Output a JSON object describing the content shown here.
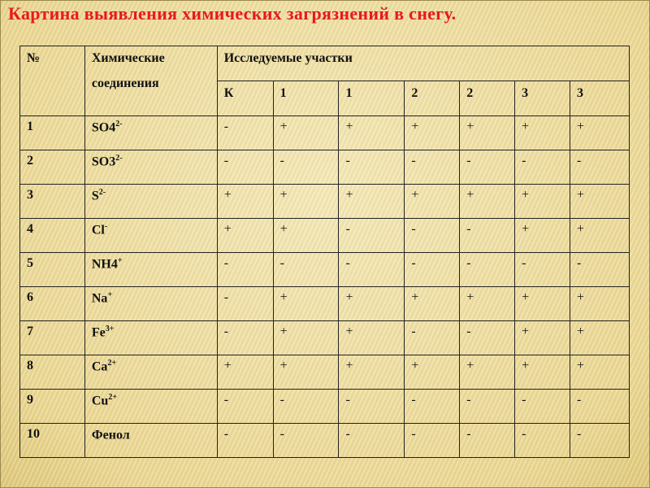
{
  "title": "Картина выявления химических загрязнений в снегу.",
  "table": {
    "col_no": "№",
    "col_compound_1": "Химические",
    "col_compound_2": "соединения",
    "col_sites": "Исследуемые участки",
    "sites": [
      "К",
      "1",
      "1",
      "2",
      "2",
      "3",
      "3"
    ],
    "rows": [
      {
        "no": "1",
        "name": "SO4",
        "charge": "2-",
        "values": [
          "-",
          "+",
          "+",
          "+",
          "+",
          "+",
          "+"
        ]
      },
      {
        "no": "2",
        "name": "SO3",
        "charge": "2-",
        "values": [
          "-",
          "-",
          "-",
          "-",
          "-",
          "-",
          "-"
        ]
      },
      {
        "no": "3",
        "name": "S",
        "charge": "2-",
        "values": [
          "+",
          "+",
          "+",
          "+",
          "+",
          "+",
          "+"
        ]
      },
      {
        "no": "4",
        "name": "Cl",
        "charge": "-",
        "values": [
          "+",
          "+",
          "-",
          "-",
          "-",
          "+",
          "+"
        ]
      },
      {
        "no": "5",
        "name": "NH4",
        "charge": "+",
        "values": [
          "-",
          "-",
          "-",
          "-",
          "-",
          "-",
          "-"
        ]
      },
      {
        "no": "6",
        "name": "Na",
        "charge": "+",
        "values": [
          "-",
          "+",
          "+",
          "+",
          "+",
          "+",
          "+"
        ]
      },
      {
        "no": "7",
        "name": "Fe",
        "charge": "3+",
        "values": [
          "-",
          "+",
          "+",
          "-",
          "-",
          "+",
          "+"
        ]
      },
      {
        "no": "8",
        "name": "Ca",
        "charge": "2+",
        "values": [
          "+",
          "+",
          "+",
          "+",
          "+",
          "+",
          "+"
        ]
      },
      {
        "no": "9",
        "name": "Cu",
        "charge": "2+",
        "values": [
          "-",
          "-",
          "-",
          "-",
          "-",
          "-",
          "-"
        ]
      },
      {
        "no": "10",
        "name": "Фенол",
        "charge": "",
        "values": [
          "-",
          "-",
          "-",
          "-",
          "-",
          "-",
          "-"
        ]
      }
    ]
  }
}
